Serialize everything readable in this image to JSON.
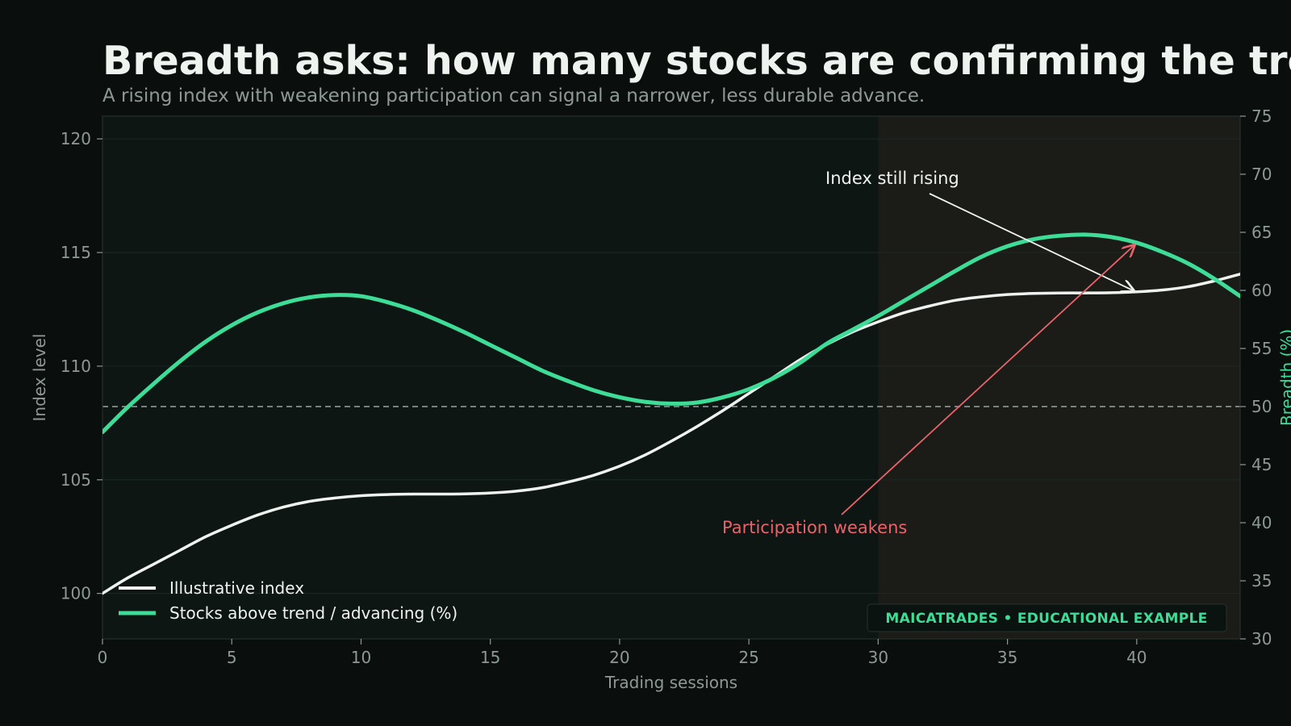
{
  "header": {
    "title": "Breadth asks: how many stocks are confirming the trend?",
    "subtitle": "A rising index with weakening participation can signal a narrower, less durable advance."
  },
  "watermark": "MAICATRADES • EDUCATIONAL EXAMPLE",
  "colors": {
    "background": "#0a0f0e",
    "plot_background": "#0e1614",
    "shaded_region": "#1b1b18",
    "index_line": "#eef3f0",
    "breadth_line": "#3ddc97",
    "annotation_red": "#e8636a",
    "muted_text": "#8e9995"
  },
  "chart_data": {
    "type": "line",
    "xlabel": "Trading sessions",
    "ylabel_left": "Index level",
    "ylabel_right": "Breadth (%)",
    "xlim": [
      0,
      44
    ],
    "ylim_left": [
      98,
      121
    ],
    "ylim_right": [
      30,
      75
    ],
    "x_ticks": [
      0,
      5,
      10,
      15,
      20,
      25,
      30,
      35,
      40
    ],
    "y_left_ticks": [
      100,
      105,
      110,
      115,
      120
    ],
    "y_right_ticks": [
      30,
      35,
      40,
      45,
      50,
      55,
      60,
      65,
      70,
      75
    ],
    "grid": true,
    "legend_position": "bottom-left",
    "reference_line": {
      "axis": "right",
      "value": 50,
      "style": "dashed"
    },
    "shaded_region": {
      "x_start": 30,
      "x_end": 44
    },
    "series": [
      {
        "name": "Illustrative index",
        "axis": "left",
        "x": [
          0,
          1,
          2,
          3,
          4,
          5,
          6,
          7,
          8,
          9,
          10,
          11,
          12,
          13,
          14,
          15,
          16,
          17,
          18,
          19,
          20,
          21,
          22,
          23,
          24,
          25,
          26,
          27,
          28,
          29,
          30,
          31,
          32,
          33,
          34,
          35,
          36,
          37,
          38,
          39,
          40,
          41,
          42,
          43,
          44
        ],
        "values": [
          100.0,
          100.7,
          101.3,
          101.9,
          102.5,
          103.0,
          103.45,
          103.8,
          104.05,
          104.2,
          104.3,
          104.35,
          104.37,
          104.37,
          104.38,
          104.42,
          104.5,
          104.65,
          104.9,
          105.2,
          105.6,
          106.1,
          106.7,
          107.35,
          108.05,
          108.8,
          109.55,
          110.3,
          110.95,
          111.5,
          111.95,
          112.35,
          112.65,
          112.9,
          113.05,
          113.15,
          113.2,
          113.22,
          113.22,
          113.23,
          113.27,
          113.35,
          113.5,
          113.75,
          114.05
        ]
      },
      {
        "name": "Stocks above trend / advancing (%)",
        "axis": "right",
        "x": [
          0,
          1,
          2,
          3,
          4,
          5,
          6,
          7,
          8,
          9,
          10,
          11,
          12,
          13,
          14,
          15,
          16,
          17,
          18,
          19,
          20,
          21,
          22,
          23,
          24,
          25,
          26,
          27,
          28,
          29,
          30,
          31,
          32,
          33,
          34,
          35,
          36,
          37,
          38,
          39,
          40,
          41,
          42,
          43,
          44
        ],
        "values": [
          47.8,
          50.0,
          52.0,
          53.9,
          55.6,
          57.0,
          58.1,
          58.9,
          59.4,
          59.6,
          59.5,
          59.0,
          58.3,
          57.4,
          56.4,
          55.3,
          54.2,
          53.1,
          52.2,
          51.4,
          50.8,
          50.4,
          50.25,
          50.35,
          50.8,
          51.5,
          52.5,
          53.8,
          55.4,
          56.6,
          57.8,
          59.1,
          60.4,
          61.7,
          62.9,
          63.8,
          64.4,
          64.7,
          64.8,
          64.6,
          64.1,
          63.3,
          62.3,
          61.0,
          59.5
        ]
      }
    ],
    "annotations": [
      {
        "text": "Index still rising",
        "series": "Illustrative index",
        "target": [
          40,
          113.25
        ]
      },
      {
        "text": "Participation weakens",
        "series": "Stocks above trend / advancing (%)",
        "target": [
          40,
          64.1
        ]
      }
    ]
  }
}
